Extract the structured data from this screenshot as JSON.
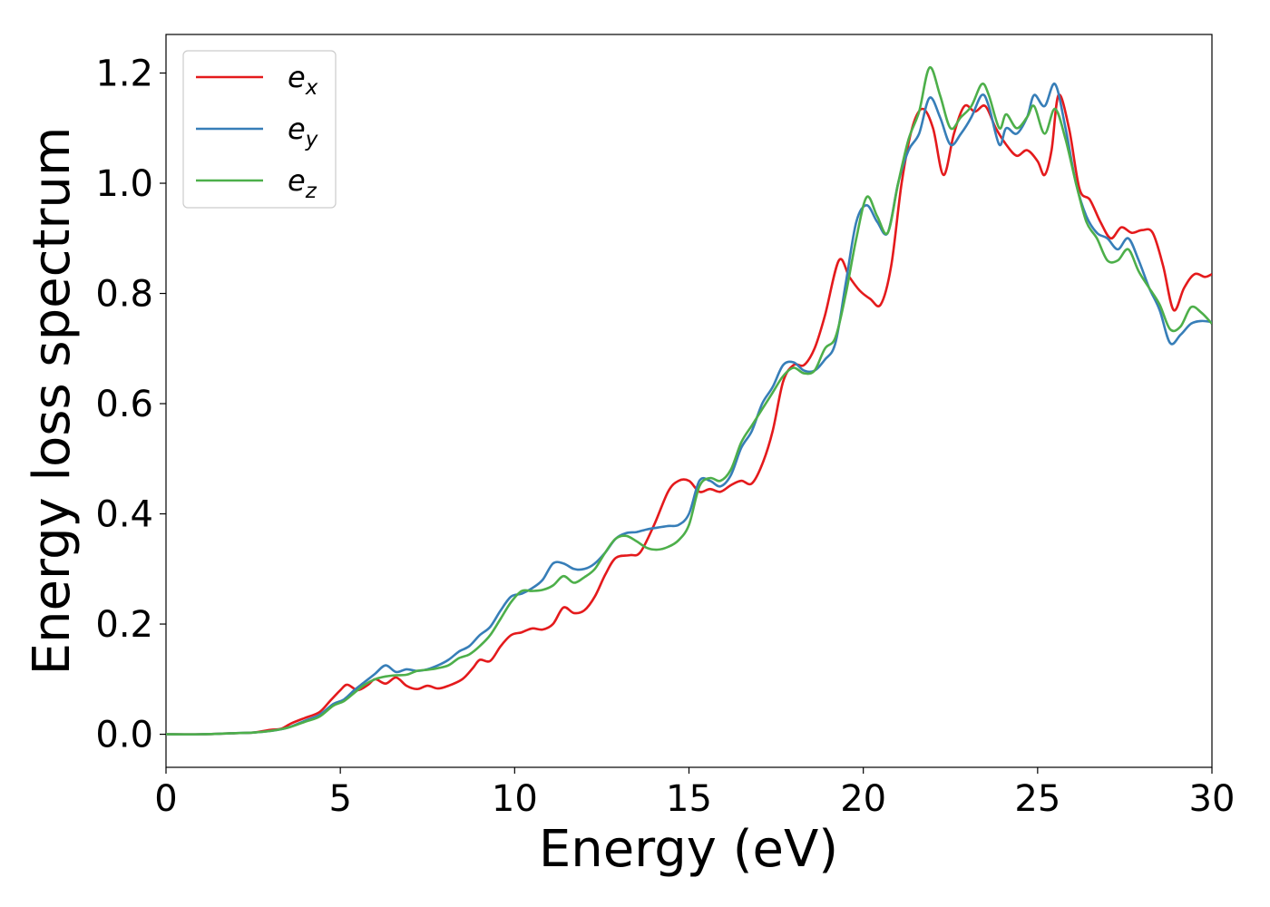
{
  "chart_data": {
    "type": "line",
    "xlabel": "Energy (eV)",
    "ylabel": "Energy loss spectrum",
    "xlim": [
      0,
      30
    ],
    "ylim": [
      -0.06,
      1.27
    ],
    "xticks": [
      0,
      5,
      10,
      15,
      20,
      25,
      30
    ],
    "xtick_labels": [
      "0",
      "5",
      "10",
      "15",
      "20",
      "25",
      "30"
    ],
    "yticks": [
      0.0,
      0.2,
      0.4,
      0.6,
      0.8,
      1.0,
      1.2
    ],
    "ytick_labels": [
      "0.0",
      "0.2",
      "0.4",
      "0.6",
      "0.8",
      "1.0",
      "1.2"
    ],
    "grid": false,
    "legend_position": "top-left",
    "series": [
      {
        "name": "e_x",
        "label_main": "e",
        "label_sub": "x",
        "color": "#e41a1c",
        "points": [
          [
            0,
            0
          ],
          [
            1,
            0
          ],
          [
            2,
            0.002
          ],
          [
            2.5,
            0.003
          ],
          [
            3,
            0.008
          ],
          [
            3.3,
            0.01
          ],
          [
            3.6,
            0.02
          ],
          [
            4,
            0.03
          ],
          [
            4.4,
            0.04
          ],
          [
            4.7,
            0.06
          ],
          [
            5.0,
            0.08
          ],
          [
            5.2,
            0.09
          ],
          [
            5.5,
            0.08
          ],
          [
            5.8,
            0.09
          ],
          [
            6.0,
            0.1
          ],
          [
            6.3,
            0.092
          ],
          [
            6.6,
            0.103
          ],
          [
            6.9,
            0.088
          ],
          [
            7.2,
            0.082
          ],
          [
            7.5,
            0.088
          ],
          [
            7.8,
            0.083
          ],
          [
            8.1,
            0.088
          ],
          [
            8.5,
            0.1
          ],
          [
            8.8,
            0.12
          ],
          [
            9.0,
            0.135
          ],
          [
            9.3,
            0.133
          ],
          [
            9.6,
            0.16
          ],
          [
            9.9,
            0.18
          ],
          [
            10.2,
            0.185
          ],
          [
            10.5,
            0.192
          ],
          [
            10.8,
            0.19
          ],
          [
            11.1,
            0.2
          ],
          [
            11.4,
            0.23
          ],
          [
            11.7,
            0.22
          ],
          [
            12.0,
            0.225
          ],
          [
            12.3,
            0.25
          ],
          [
            12.6,
            0.29
          ],
          [
            12.9,
            0.32
          ],
          [
            13.3,
            0.325
          ],
          [
            13.6,
            0.33
          ],
          [
            14.0,
            0.38
          ],
          [
            14.4,
            0.44
          ],
          [
            14.7,
            0.46
          ],
          [
            15.0,
            0.46
          ],
          [
            15.3,
            0.44
          ],
          [
            15.6,
            0.445
          ],
          [
            15.9,
            0.44
          ],
          [
            16.2,
            0.452
          ],
          [
            16.5,
            0.46
          ],
          [
            16.8,
            0.455
          ],
          [
            17.1,
            0.49
          ],
          [
            17.4,
            0.55
          ],
          [
            17.7,
            0.64
          ],
          [
            18.0,
            0.67
          ],
          [
            18.3,
            0.67
          ],
          [
            18.6,
            0.7
          ],
          [
            18.9,
            0.76
          ],
          [
            19.3,
            0.86
          ],
          [
            19.6,
            0.83
          ],
          [
            19.9,
            0.805
          ],
          [
            20.2,
            0.79
          ],
          [
            20.5,
            0.78
          ],
          [
            20.8,
            0.85
          ],
          [
            21.1,
            1.0
          ],
          [
            21.4,
            1.1
          ],
          [
            21.7,
            1.135
          ],
          [
            22.0,
            1.1
          ],
          [
            22.3,
            1.015
          ],
          [
            22.6,
            1.09
          ],
          [
            22.9,
            1.14
          ],
          [
            23.2,
            1.13
          ],
          [
            23.5,
            1.14
          ],
          [
            23.8,
            1.1
          ],
          [
            24.1,
            1.07
          ],
          [
            24.4,
            1.05
          ],
          [
            24.7,
            1.06
          ],
          [
            25.0,
            1.04
          ],
          [
            25.2,
            1.015
          ],
          [
            25.4,
            1.06
          ],
          [
            25.6,
            1.16
          ],
          [
            25.9,
            1.1
          ],
          [
            26.2,
            0.99
          ],
          [
            26.5,
            0.97
          ],
          [
            26.8,
            0.93
          ],
          [
            27.1,
            0.9
          ],
          [
            27.4,
            0.92
          ],
          [
            27.7,
            0.91
          ],
          [
            28.0,
            0.915
          ],
          [
            28.3,
            0.91
          ],
          [
            28.6,
            0.85
          ],
          [
            28.9,
            0.77
          ],
          [
            29.2,
            0.81
          ],
          [
            29.5,
            0.835
          ],
          [
            29.8,
            0.83
          ],
          [
            30,
            0.835
          ]
        ]
      },
      {
        "name": "e_y",
        "label_main": "e",
        "label_sub": "y",
        "color": "#377eb8",
        "points": [
          [
            0,
            0
          ],
          [
            1,
            0
          ],
          [
            2,
            0.002
          ],
          [
            2.5,
            0.003
          ],
          [
            3,
            0.006
          ],
          [
            3.5,
            0.012
          ],
          [
            4,
            0.025
          ],
          [
            4.4,
            0.035
          ],
          [
            4.8,
            0.055
          ],
          [
            5.1,
            0.063
          ],
          [
            5.4,
            0.08
          ],
          [
            5.7,
            0.095
          ],
          [
            6.0,
            0.11
          ],
          [
            6.3,
            0.125
          ],
          [
            6.6,
            0.113
          ],
          [
            6.9,
            0.118
          ],
          [
            7.2,
            0.115
          ],
          [
            7.5,
            0.118
          ],
          [
            7.8,
            0.125
          ],
          [
            8.1,
            0.135
          ],
          [
            8.4,
            0.15
          ],
          [
            8.7,
            0.16
          ],
          [
            9.0,
            0.18
          ],
          [
            9.3,
            0.195
          ],
          [
            9.6,
            0.225
          ],
          [
            9.9,
            0.25
          ],
          [
            10.2,
            0.255
          ],
          [
            10.5,
            0.265
          ],
          [
            10.8,
            0.28
          ],
          [
            11.1,
            0.31
          ],
          [
            11.4,
            0.31
          ],
          [
            11.7,
            0.3
          ],
          [
            12.0,
            0.3
          ],
          [
            12.3,
            0.31
          ],
          [
            12.6,
            0.33
          ],
          [
            12.9,
            0.355
          ],
          [
            13.2,
            0.365
          ],
          [
            13.5,
            0.367
          ],
          [
            13.8,
            0.372
          ],
          [
            14.1,
            0.375
          ],
          [
            14.4,
            0.378
          ],
          [
            14.7,
            0.38
          ],
          [
            15.0,
            0.4
          ],
          [
            15.3,
            0.46
          ],
          [
            15.6,
            0.46
          ],
          [
            15.9,
            0.45
          ],
          [
            16.2,
            0.47
          ],
          [
            16.5,
            0.52
          ],
          [
            16.8,
            0.55
          ],
          [
            17.1,
            0.6
          ],
          [
            17.4,
            0.63
          ],
          [
            17.7,
            0.67
          ],
          [
            18.0,
            0.675
          ],
          [
            18.3,
            0.66
          ],
          [
            18.6,
            0.66
          ],
          [
            18.9,
            0.68
          ],
          [
            19.2,
            0.71
          ],
          [
            19.5,
            0.82
          ],
          [
            19.8,
            0.93
          ],
          [
            20.1,
            0.96
          ],
          [
            20.4,
            0.93
          ],
          [
            20.7,
            0.91
          ],
          [
            21.0,
            1.0
          ],
          [
            21.3,
            1.06
          ],
          [
            21.6,
            1.09
          ],
          [
            21.9,
            1.155
          ],
          [
            22.2,
            1.12
          ],
          [
            22.5,
            1.07
          ],
          [
            22.8,
            1.09
          ],
          [
            23.1,
            1.12
          ],
          [
            23.4,
            1.16
          ],
          [
            23.6,
            1.14
          ],
          [
            23.9,
            1.07
          ],
          [
            24.1,
            1.1
          ],
          [
            24.4,
            1.09
          ],
          [
            24.7,
            1.12
          ],
          [
            24.9,
            1.16
          ],
          [
            25.2,
            1.14
          ],
          [
            25.5,
            1.18
          ],
          [
            25.8,
            1.1
          ],
          [
            26.1,
            1.0
          ],
          [
            26.4,
            0.94
          ],
          [
            26.7,
            0.91
          ],
          [
            27.0,
            0.9
          ],
          [
            27.3,
            0.88
          ],
          [
            27.6,
            0.9
          ],
          [
            27.9,
            0.86
          ],
          [
            28.2,
            0.81
          ],
          [
            28.5,
            0.77
          ],
          [
            28.8,
            0.71
          ],
          [
            29.1,
            0.725
          ],
          [
            29.4,
            0.745
          ],
          [
            29.7,
            0.75
          ],
          [
            30,
            0.748
          ]
        ]
      },
      {
        "name": "e_z",
        "label_main": "e",
        "label_sub": "z",
        "color": "#4daf4a",
        "points": [
          [
            0,
            0
          ],
          [
            1,
            0
          ],
          [
            2,
            0.002
          ],
          [
            2.5,
            0.003
          ],
          [
            3,
            0.006
          ],
          [
            3.5,
            0.012
          ],
          [
            4,
            0.023
          ],
          [
            4.4,
            0.032
          ],
          [
            4.8,
            0.052
          ],
          [
            5.1,
            0.06
          ],
          [
            5.4,
            0.075
          ],
          [
            5.7,
            0.09
          ],
          [
            6.0,
            0.1
          ],
          [
            6.3,
            0.105
          ],
          [
            6.6,
            0.107
          ],
          [
            6.9,
            0.108
          ],
          [
            7.2,
            0.115
          ],
          [
            7.5,
            0.117
          ],
          [
            7.8,
            0.12
          ],
          [
            8.1,
            0.125
          ],
          [
            8.4,
            0.138
          ],
          [
            8.7,
            0.145
          ],
          [
            9.0,
            0.16
          ],
          [
            9.3,
            0.18
          ],
          [
            9.6,
            0.21
          ],
          [
            9.9,
            0.24
          ],
          [
            10.2,
            0.26
          ],
          [
            10.5,
            0.26
          ],
          [
            10.8,
            0.262
          ],
          [
            11.1,
            0.27
          ],
          [
            11.4,
            0.287
          ],
          [
            11.7,
            0.275
          ],
          [
            12.0,
            0.285
          ],
          [
            12.3,
            0.3
          ],
          [
            12.6,
            0.33
          ],
          [
            12.9,
            0.355
          ],
          [
            13.2,
            0.36
          ],
          [
            13.5,
            0.35
          ],
          [
            13.8,
            0.338
          ],
          [
            14.1,
            0.335
          ],
          [
            14.4,
            0.34
          ],
          [
            14.7,
            0.352
          ],
          [
            15.0,
            0.38
          ],
          [
            15.3,
            0.45
          ],
          [
            15.6,
            0.465
          ],
          [
            15.9,
            0.46
          ],
          [
            16.2,
            0.48
          ],
          [
            16.5,
            0.53
          ],
          [
            16.8,
            0.56
          ],
          [
            17.1,
            0.59
          ],
          [
            17.4,
            0.62
          ],
          [
            17.7,
            0.65
          ],
          [
            18.0,
            0.665
          ],
          [
            18.3,
            0.655
          ],
          [
            18.6,
            0.66
          ],
          [
            18.9,
            0.7
          ],
          [
            19.2,
            0.72
          ],
          [
            19.5,
            0.8
          ],
          [
            19.8,
            0.9
          ],
          [
            20.1,
            0.975
          ],
          [
            20.4,
            0.94
          ],
          [
            20.7,
            0.91
          ],
          [
            21.0,
            1.0
          ],
          [
            21.3,
            1.08
          ],
          [
            21.6,
            1.13
          ],
          [
            21.9,
            1.21
          ],
          [
            22.2,
            1.16
          ],
          [
            22.5,
            1.1
          ],
          [
            22.8,
            1.12
          ],
          [
            23.1,
            1.14
          ],
          [
            23.4,
            1.18
          ],
          [
            23.6,
            1.16
          ],
          [
            23.9,
            1.1
          ],
          [
            24.1,
            1.125
          ],
          [
            24.4,
            1.1
          ],
          [
            24.7,
            1.12
          ],
          [
            24.9,
            1.14
          ],
          [
            25.2,
            1.09
          ],
          [
            25.5,
            1.135
          ],
          [
            25.8,
            1.08
          ],
          [
            26.1,
            1.0
          ],
          [
            26.4,
            0.93
          ],
          [
            26.7,
            0.9
          ],
          [
            27.0,
            0.86
          ],
          [
            27.3,
            0.86
          ],
          [
            27.6,
            0.88
          ],
          [
            27.9,
            0.84
          ],
          [
            28.2,
            0.81
          ],
          [
            28.5,
            0.78
          ],
          [
            28.8,
            0.735
          ],
          [
            29.1,
            0.74
          ],
          [
            29.4,
            0.775
          ],
          [
            29.7,
            0.765
          ],
          [
            30,
            0.745
          ]
        ]
      }
    ]
  }
}
